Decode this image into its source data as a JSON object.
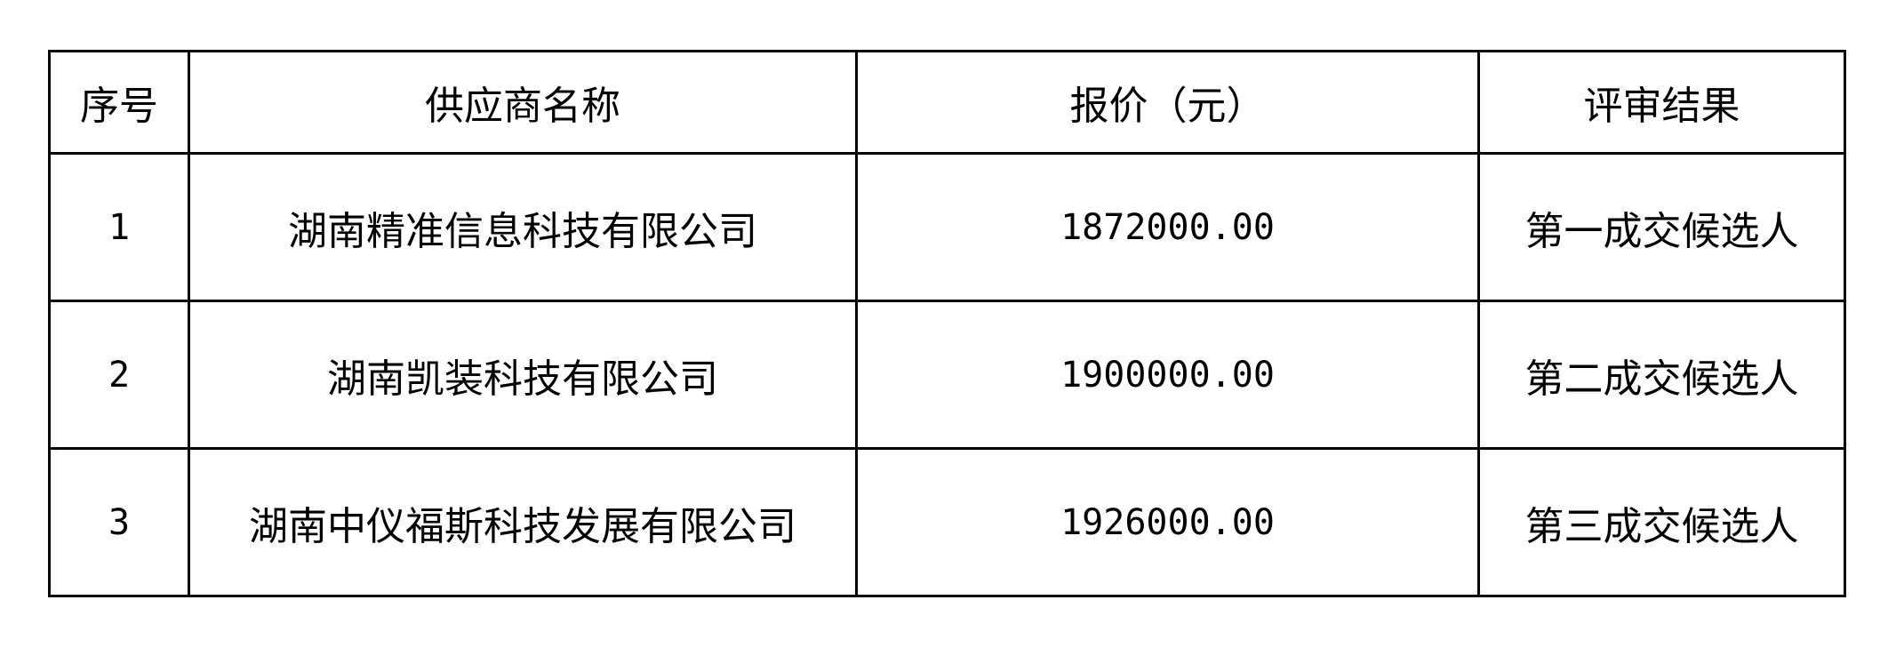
{
  "table": {
    "headers": [
      "序号",
      "供应商名称",
      "报价（元）",
      "评审结果"
    ],
    "rows": [
      {
        "index": "1",
        "supplier": "湖南精准信息科技有限公司",
        "price": "1872000.00",
        "result": "第一成交候选人"
      },
      {
        "index": "2",
        "supplier": "湖南凯装科技有限公司",
        "price": "1900000.00",
        "result": "第二成交候选人"
      },
      {
        "index": "3",
        "supplier": "湖南中仪福斯科技发展有限公司",
        "price": "1926000.00",
        "result": "第三成交候选人"
      }
    ]
  }
}
